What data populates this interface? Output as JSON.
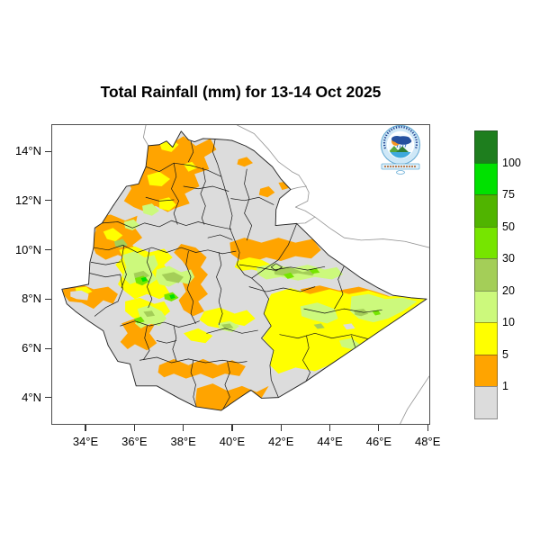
{
  "title": "Total Rainfall (mm) for 13-14 Oct 2025",
  "axes": {
    "x": {
      "labels": [
        "34°E",
        "36°E",
        "38°E",
        "40°E",
        "42°E",
        "44°E",
        "46°E",
        "48°E"
      ],
      "values_deg_east": [
        34,
        36,
        38,
        40,
        42,
        44,
        46,
        48
      ]
    },
    "y": {
      "labels": [
        "14°N",
        "12°N",
        "10°N",
        "8°N",
        "6°N",
        "4°N"
      ],
      "values_deg_north": [
        14,
        12,
        10,
        8,
        6,
        4
      ]
    }
  },
  "legend": {
    "labels": [
      "100",
      "75",
      "50",
      "30",
      "20",
      "10",
      "5",
      "1"
    ],
    "colors_top_to_bottom": [
      "#1E7E1E",
      "#00E100",
      "#50B400",
      "#76E500",
      "#A4CE58",
      "#CCF97C",
      "#FFFF00",
      "#FFA400",
      "#DCDCDC"
    ]
  },
  "map": {
    "palette": {
      "no_rain_gray": "#DCDCDC",
      "rain_1_5_orange": "#FFA400",
      "rain_5_10_yellow": "#FFFF00",
      "rain_10_20_pale_green": "#CCF97C",
      "rain_20_30_olive_green": "#A4CE58",
      "rain_30_50_bright_green": "#76E500",
      "rain_50_75_green": "#50B400",
      "rain_75_100_vivid_green": "#00E100",
      "rain_over_100_dark_green": "#1E7E1E"
    }
  },
  "logo": {
    "name": "ethiopian-meteorology-institute-logo"
  }
}
